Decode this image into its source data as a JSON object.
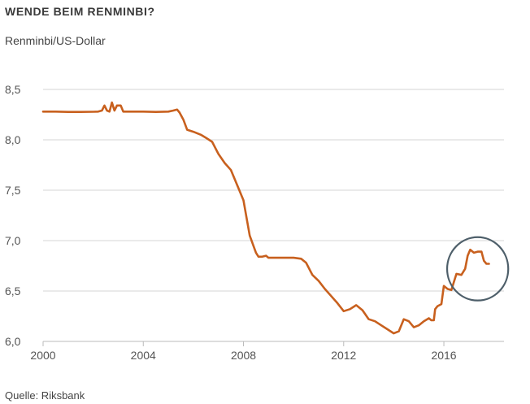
{
  "header": {
    "title": "WENDE BEIM RENMINBI?",
    "subtitle": "Renminbi/US-Dollar"
  },
  "footer": {
    "source": "Quelle: Riksbank"
  },
  "chart_data": {
    "type": "line",
    "title": "WENDE BEIM RENMINBI?",
    "subtitle": "Renminbi/US-Dollar",
    "source": "Quelle: Riksbank",
    "xlim": [
      2000,
      2018.4
    ],
    "ylim": [
      6.0,
      8.5
    ],
    "grid": true,
    "x_ticks": [
      {
        "value": 2000,
        "label": "2000"
      },
      {
        "value": 2004,
        "label": "2004"
      },
      {
        "value": 2008,
        "label": "2008"
      },
      {
        "value": 2012,
        "label": "2012"
      },
      {
        "value": 2016,
        "label": "2016"
      }
    ],
    "y_ticks": [
      {
        "value": 6.0,
        "label": "6,0"
      },
      {
        "value": 6.5,
        "label": "6,5"
      },
      {
        "value": 7.0,
        "label": "7,0"
      },
      {
        "value": 7.5,
        "label": "7,5"
      },
      {
        "value": 8.0,
        "label": "8,0"
      },
      {
        "value": 8.5,
        "label": "8,5"
      }
    ],
    "colors": {
      "line": "#c8601e",
      "grid": "#d4d4d4",
      "axis": "#bbbbbb",
      "highlight": "#4e5f6a"
    },
    "highlight_circle": {
      "center_x": 2017.35,
      "center_y": 6.72,
      "radius_x": 1.22,
      "radius_y": 0.314
    },
    "series": [
      {
        "points": [
          [
            2000.0,
            8.28
          ],
          [
            2000.5,
            8.28
          ],
          [
            2001.0,
            8.277
          ],
          [
            2001.5,
            8.277
          ],
          [
            2002.0,
            8.278
          ],
          [
            2002.2,
            8.28
          ],
          [
            2002.35,
            8.29
          ],
          [
            2002.45,
            8.34
          ],
          [
            2002.55,
            8.29
          ],
          [
            2002.65,
            8.28
          ],
          [
            2002.75,
            8.37
          ],
          [
            2002.85,
            8.29
          ],
          [
            2002.95,
            8.34
          ],
          [
            2003.1,
            8.34
          ],
          [
            2003.2,
            8.28
          ],
          [
            2003.5,
            8.28
          ],
          [
            2004.0,
            8.28
          ],
          [
            2004.5,
            8.277
          ],
          [
            2005.0,
            8.28
          ],
          [
            2005.2,
            8.29
          ],
          [
            2005.35,
            8.3
          ],
          [
            2005.45,
            8.27
          ],
          [
            2005.6,
            8.2
          ],
          [
            2005.75,
            8.1
          ],
          [
            2006.0,
            8.08
          ],
          [
            2006.3,
            8.05
          ],
          [
            2006.5,
            8.02
          ],
          [
            2006.75,
            7.98
          ],
          [
            2007.0,
            7.86
          ],
          [
            2007.25,
            7.77
          ],
          [
            2007.5,
            7.7
          ],
          [
            2007.75,
            7.55
          ],
          [
            2008.0,
            7.4
          ],
          [
            2008.25,
            7.05
          ],
          [
            2008.5,
            6.88
          ],
          [
            2008.6,
            6.84
          ],
          [
            2008.75,
            6.84
          ],
          [
            2008.9,
            6.85
          ],
          [
            2009.0,
            6.83
          ],
          [
            2009.5,
            6.83
          ],
          [
            2010.0,
            6.83
          ],
          [
            2010.3,
            6.82
          ],
          [
            2010.5,
            6.78
          ],
          [
            2010.75,
            6.66
          ],
          [
            2011.0,
            6.6
          ],
          [
            2011.25,
            6.52
          ],
          [
            2011.5,
            6.45
          ],
          [
            2011.75,
            6.38
          ],
          [
            2012.0,
            6.3
          ],
          [
            2012.25,
            6.32
          ],
          [
            2012.5,
            6.36
          ],
          [
            2012.75,
            6.31
          ],
          [
            2013.0,
            6.22
          ],
          [
            2013.25,
            6.2
          ],
          [
            2013.5,
            6.16
          ],
          [
            2013.75,
            6.12
          ],
          [
            2014.0,
            6.08
          ],
          [
            2014.2,
            6.1
          ],
          [
            2014.4,
            6.22
          ],
          [
            2014.6,
            6.2
          ],
          [
            2014.8,
            6.14
          ],
          [
            2015.0,
            6.16
          ],
          [
            2015.2,
            6.2
          ],
          [
            2015.4,
            6.23
          ],
          [
            2015.5,
            6.21
          ],
          [
            2015.6,
            6.21
          ],
          [
            2015.65,
            6.32
          ],
          [
            2015.75,
            6.35
          ],
          [
            2015.9,
            6.37
          ],
          [
            2016.0,
            6.55
          ],
          [
            2016.15,
            6.52
          ],
          [
            2016.3,
            6.51
          ],
          [
            2016.5,
            6.67
          ],
          [
            2016.7,
            6.66
          ],
          [
            2016.85,
            6.72
          ],
          [
            2016.95,
            6.85
          ],
          [
            2017.05,
            6.91
          ],
          [
            2017.2,
            6.88
          ],
          [
            2017.35,
            6.89
          ],
          [
            2017.5,
            6.89
          ],
          [
            2017.6,
            6.8
          ],
          [
            2017.7,
            6.77
          ],
          [
            2017.8,
            6.77
          ]
        ]
      }
    ]
  }
}
